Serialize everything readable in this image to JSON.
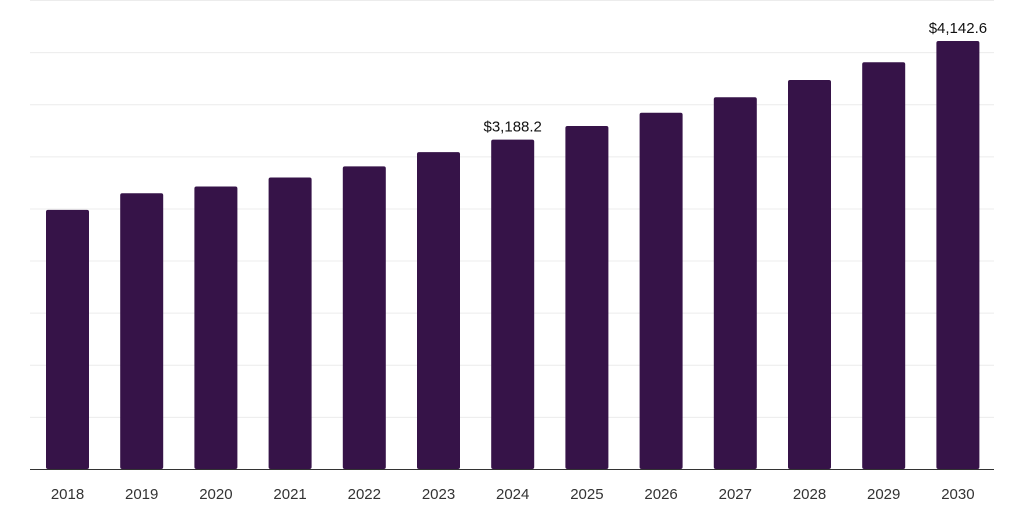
{
  "chart_data": {
    "type": "bar",
    "categories": [
      "2018",
      "2019",
      "2020",
      "2021",
      "2022",
      "2023",
      "2024",
      "2025",
      "2026",
      "2027",
      "2028",
      "2029",
      "2030"
    ],
    "values": [
      2508,
      2669,
      2735,
      2822,
      2929,
      3067,
      3188.2,
      3320,
      3448,
      3598,
      3765,
      3937,
      4142.6
    ],
    "data_labels": [
      {
        "category": "2024",
        "text": "$3,188.2"
      },
      {
        "category": "2030",
        "text": "$4,142.6"
      }
    ],
    "title": "",
    "xlabel": "",
    "ylabel": "",
    "ylim": [
      0,
      4540
    ],
    "grid": true,
    "gridlines": 9,
    "legend": "none",
    "bar_color": "#361348"
  }
}
